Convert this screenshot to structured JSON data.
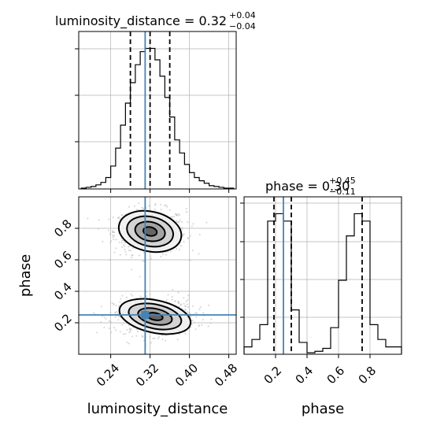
{
  "chart_data": [
    {
      "type": "histogram",
      "panel": "luminosity_distance marginal",
      "title": {
        "prefix": "luminosity_distance = 0.32",
        "upper": "+0.04",
        "lower": "−0.04"
      },
      "xlim": [
        0.175,
        0.495
      ],
      "bins": [
        0.18,
        0.19,
        0.2,
        0.21,
        0.22,
        0.23,
        0.24,
        0.25,
        0.26,
        0.27,
        0.28,
        0.29,
        0.3,
        0.31,
        0.32,
        0.33,
        0.34,
        0.35,
        0.36,
        0.37,
        0.38,
        0.39,
        0.4,
        0.41,
        0.42,
        0.43,
        0.44,
        0.45,
        0.46,
        0.47,
        0.48,
        0.49
      ],
      "counts": [
        1,
        2,
        3,
        5,
        8,
        14,
        28,
        50,
        78,
        105,
        130,
        152,
        168,
        172,
        172,
        158,
        138,
        112,
        88,
        60,
        44,
        30,
        20,
        14,
        10,
        7,
        4,
        3,
        2,
        1,
        1
      ],
      "quantiles": [
        0.28,
        0.32,
        0.36
      ],
      "truth": 0.31,
      "grid": true
    },
    {
      "type": "histogram",
      "panel": "phase marginal",
      "title": {
        "prefix": "phase = 0.30",
        "upper": "+0.45",
        "lower": "−0.11"
      },
      "xlim": [
        0.0,
        1.0
      ],
      "bins": [
        0.0,
        0.05,
        0.1,
        0.15,
        0.2,
        0.25,
        0.3,
        0.35,
        0.4,
        0.45,
        0.5,
        0.55,
        0.6,
        0.65,
        0.7,
        0.75,
        0.8,
        0.85,
        0.9,
        0.95,
        1.0
      ],
      "counts": [
        5,
        10,
        20,
        90,
        95,
        90,
        30,
        8,
        1,
        2,
        4,
        18,
        50,
        80,
        95,
        90,
        20,
        10,
        5,
        5
      ],
      "quantiles": [
        0.19,
        0.3,
        0.75
      ],
      "truth": 0.25,
      "xticks": [
        "0.2",
        "0.4",
        "0.6",
        "0.8"
      ],
      "xlabel": "phase",
      "grid": true
    },
    {
      "type": "2d-density",
      "panel": "joint luminosity_distance vs phase",
      "xlim": [
        0.175,
        0.495
      ],
      "ylim": [
        0.0,
        1.0
      ],
      "xticks": [
        "0.24",
        "0.32",
        "0.40",
        "0.48"
      ],
      "yticks": [
        "0.2",
        "0.4",
        "0.6",
        "0.8"
      ],
      "xlabel": "luminosity_distance",
      "ylabel": "phase",
      "truth": {
        "x": 0.31,
        "y": 0.25
      },
      "modes": [
        {
          "x": 0.32,
          "y": 0.78,
          "sx": 0.028,
          "sy": 0.055,
          "weight": 0.5
        },
        {
          "x": 0.33,
          "y": 0.24,
          "sx": 0.032,
          "sy": 0.045,
          "weight": 0.5
        }
      ],
      "grid": true
    }
  ],
  "colors": {
    "truth": "#4682b4",
    "hist": "#000000",
    "grid": "#b0b0b0",
    "points": "#c0c0c0"
  }
}
